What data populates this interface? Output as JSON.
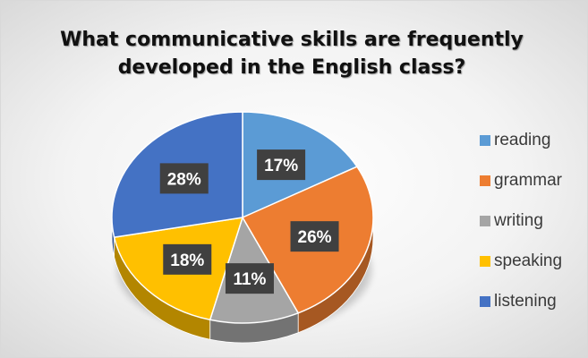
{
  "chart_data": {
    "type": "pie",
    "title": "What communicative skills are frequently developed in the English class?",
    "categories": [
      "reading",
      "grammar",
      "writing",
      "speaking",
      "listening"
    ],
    "values": [
      17,
      26,
      11,
      18,
      28
    ],
    "value_labels": [
      "17%",
      "26%",
      "11%",
      "18%",
      "28%"
    ],
    "colors": [
      "#5b9bd5",
      "#ed7d31",
      "#a5a5a5",
      "#ffc000",
      "#4472c4"
    ],
    "legend_position": "right",
    "style": "3d"
  }
}
